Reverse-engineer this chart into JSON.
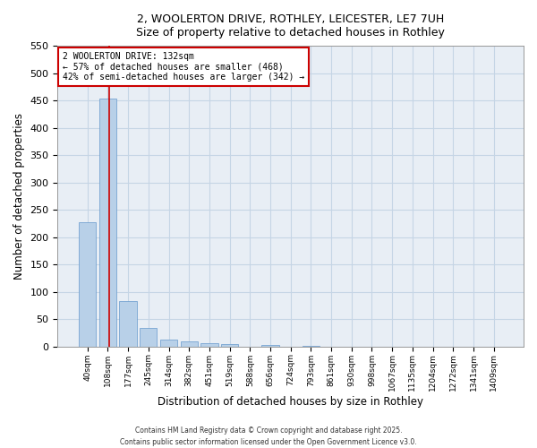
{
  "title_line1": "2, WOOLERTON DRIVE, ROTHLEY, LEICESTER, LE7 7UH",
  "title_line2": "Size of property relative to detached houses in Rothley",
  "xlabel": "Distribution of detached houses by size in Rothley",
  "ylabel": "Number of detached properties",
  "categories": [
    "40sqm",
    "108sqm",
    "177sqm",
    "245sqm",
    "314sqm",
    "382sqm",
    "451sqm",
    "519sqm",
    "588sqm",
    "656sqm",
    "724sqm",
    "793sqm",
    "861sqm",
    "930sqm",
    "998sqm",
    "1067sqm",
    "1135sqm",
    "1204sqm",
    "1272sqm",
    "1341sqm",
    "1409sqm"
  ],
  "values": [
    228,
    453,
    83,
    34,
    12,
    10,
    6,
    5,
    0,
    2,
    0,
    1,
    0,
    0,
    0,
    0,
    0,
    0,
    0,
    0,
    0
  ],
  "bar_color": "#b8d0e8",
  "bar_edge_color": "#6699cc",
  "grid_color": "#c5d5e5",
  "plot_bg_color": "#e8eef5",
  "fig_bg_color": "#ffffff",
  "annotation_text": "2 WOOLERTON DRIVE: 132sqm\n← 57% of detached houses are smaller (468)\n42% of semi-detached houses are larger (342) →",
  "vline_x": 1.07,
  "vline_color": "#cc0000",
  "annotation_box_edge_color": "#cc0000",
  "ylim": [
    0,
    550
  ],
  "yticks": [
    0,
    50,
    100,
    150,
    200,
    250,
    300,
    350,
    400,
    450,
    500,
    550
  ],
  "footer_line1": "Contains HM Land Registry data © Crown copyright and database right 2025.",
  "footer_line2": "Contains public sector information licensed under the Open Government Licence v3.0."
}
